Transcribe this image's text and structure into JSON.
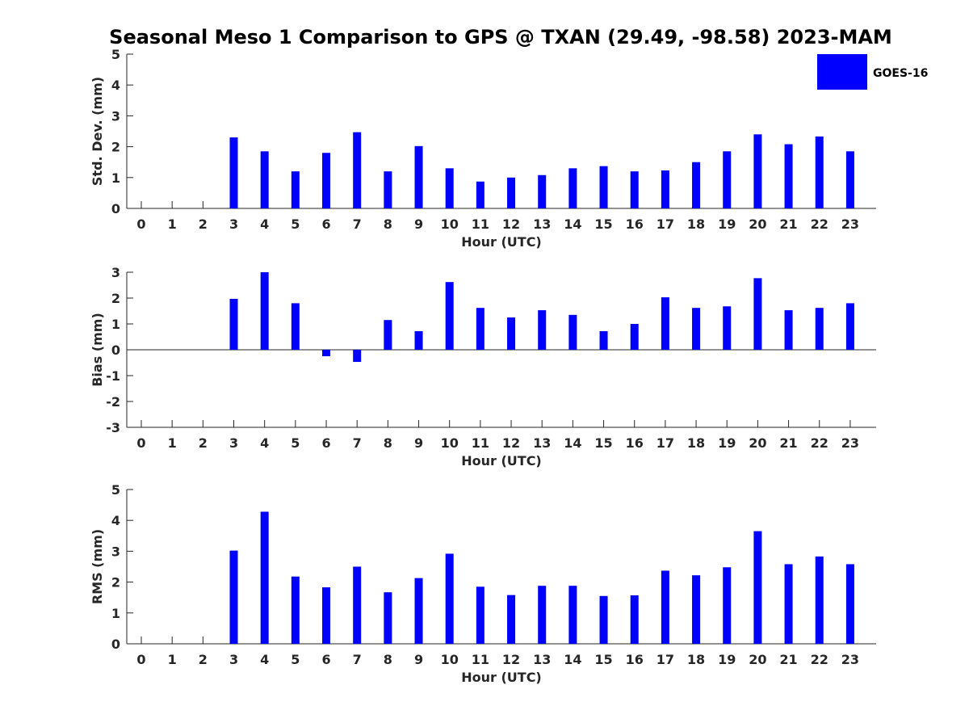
{
  "title": "Seasonal Meso 1 Comparison to GPS @ TXAN (29.49, -98.58) 2023-MAM",
  "colors": {
    "bar": "#0000ff",
    "axis": "#262626"
  },
  "legend": {
    "label": "GOES-16",
    "placement": "top-right"
  },
  "chart_data": [
    {
      "type": "bar",
      "ylabel": "Std. Dev. (mm)",
      "xlabel": "Hour (UTC)",
      "ylim": [
        0,
        5
      ],
      "yticks": [
        0,
        1,
        2,
        3,
        4,
        5
      ],
      "categories": [
        "0",
        "1",
        "2",
        "3",
        "4",
        "5",
        "6",
        "7",
        "8",
        "9",
        "10",
        "11",
        "12",
        "13",
        "14",
        "15",
        "16",
        "17",
        "18",
        "19",
        "20",
        "21",
        "22",
        "23"
      ],
      "series": [
        {
          "name": "GOES-16",
          "values": [
            null,
            null,
            null,
            2.3,
            1.85,
            1.2,
            1.8,
            2.47,
            1.2,
            2.02,
            1.3,
            0.87,
            1.0,
            1.08,
            1.3,
            1.37,
            1.2,
            1.23,
            1.5,
            1.85,
            2.4,
            2.08,
            2.33,
            1.85
          ]
        }
      ]
    },
    {
      "type": "bar",
      "ylabel": "Bias (mm)",
      "xlabel": "Hour (UTC)",
      "ylim": [
        -3,
        3
      ],
      "yticks": [
        -3,
        -2,
        -1,
        0,
        1,
        2,
        3
      ],
      "categories": [
        "0",
        "1",
        "2",
        "3",
        "4",
        "5",
        "6",
        "7",
        "8",
        "9",
        "10",
        "11",
        "12",
        "13",
        "14",
        "15",
        "16",
        "17",
        "18",
        "19",
        "20",
        "21",
        "22",
        "23"
      ],
      "series": [
        {
          "name": "GOES-16",
          "values": [
            null,
            null,
            null,
            1.97,
            3.0,
            1.8,
            -0.25,
            -0.47,
            1.15,
            0.72,
            2.62,
            1.62,
            1.25,
            1.53,
            1.35,
            0.72,
            1.0,
            2.03,
            1.62,
            1.68,
            2.77,
            1.53,
            1.62,
            1.8
          ]
        }
      ]
    },
    {
      "type": "bar",
      "ylabel": "RMS (mm)",
      "xlabel": "Hour (UTC)",
      "ylim": [
        0,
        5
      ],
      "yticks": [
        0,
        1,
        2,
        3,
        4,
        5
      ],
      "categories": [
        "0",
        "1",
        "2",
        "3",
        "4",
        "5",
        "6",
        "7",
        "8",
        "9",
        "10",
        "11",
        "12",
        "13",
        "14",
        "15",
        "16",
        "17",
        "18",
        "19",
        "20",
        "21",
        "22",
        "23"
      ],
      "series": [
        {
          "name": "GOES-16",
          "values": [
            null,
            null,
            null,
            3.02,
            4.28,
            2.18,
            1.83,
            2.5,
            1.67,
            2.13,
            2.92,
            1.85,
            1.58,
            1.88,
            1.88,
            1.55,
            1.57,
            2.37,
            2.22,
            2.48,
            3.65,
            2.58,
            2.83,
            2.58
          ]
        }
      ]
    }
  ]
}
